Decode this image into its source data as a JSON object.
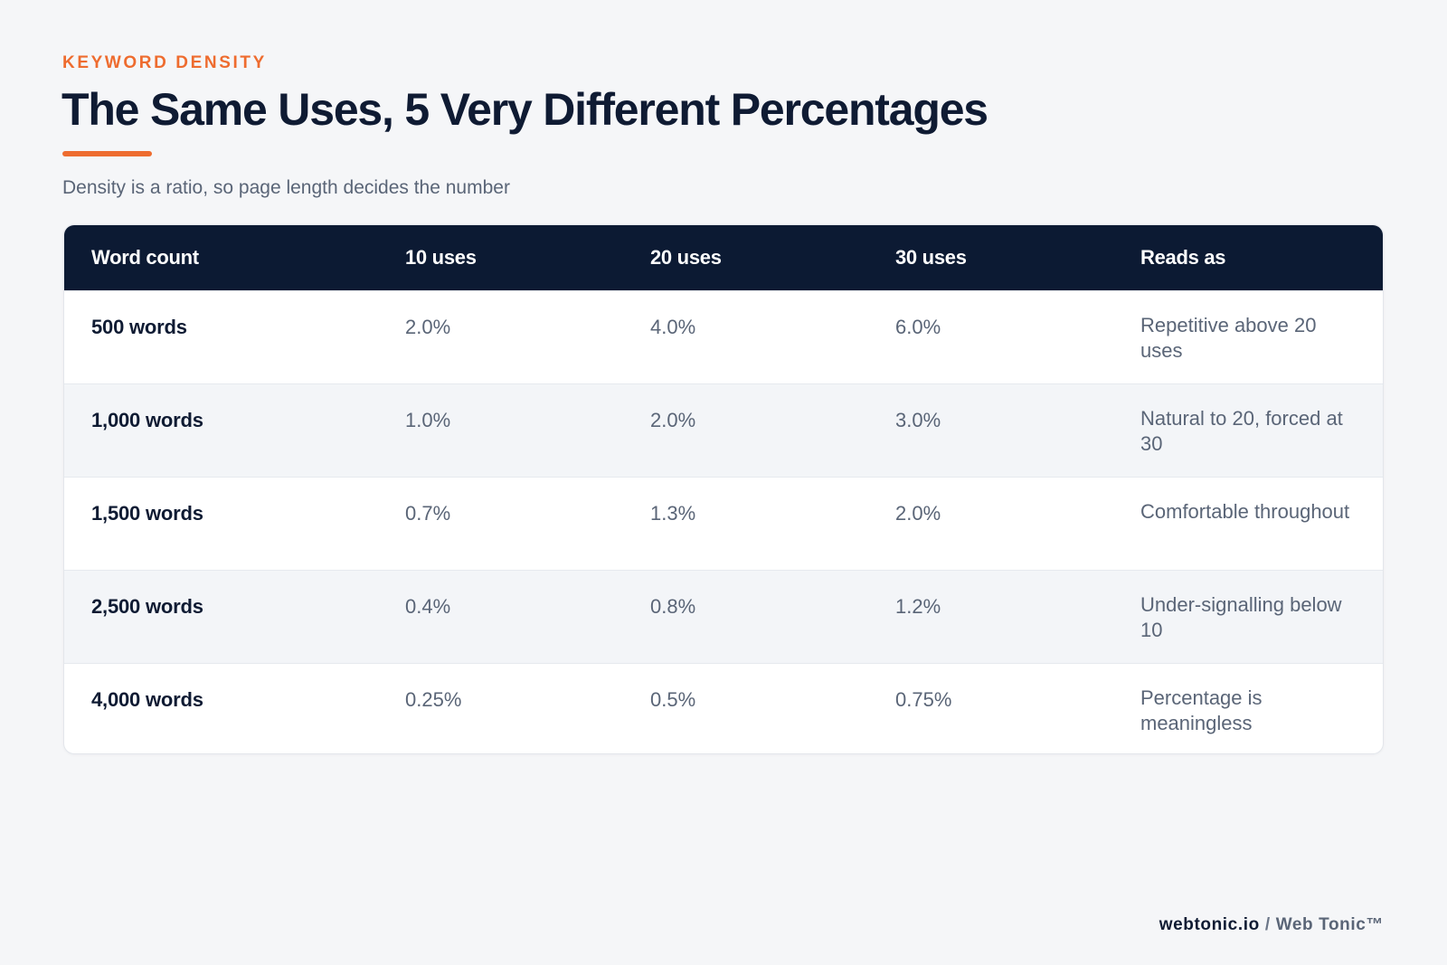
{
  "header": {
    "eyebrow": "KEYWORD DENSITY",
    "title": "The Same Uses, 5 Very Different Percentages",
    "subtitle": "Density is a ratio, so page length decides the number"
  },
  "table": {
    "columns": [
      "Word count",
      "10 uses",
      "20 uses",
      "30 uses",
      "Reads as"
    ],
    "rows": [
      {
        "label": "500 words",
        "u10": "2.0%",
        "u20": "4.0%",
        "u30": "6.0%",
        "note": "Repetitive above 20 uses"
      },
      {
        "label": "1,000 words",
        "u10": "1.0%",
        "u20": "2.0%",
        "u30": "3.0%",
        "note": "Natural to 20, forced at 30"
      },
      {
        "label": "1,500 words",
        "u10": "0.7%",
        "u20": "1.3%",
        "u30": "2.0%",
        "note": "Comfortable throughout"
      },
      {
        "label": "2,500 words",
        "u10": "0.4%",
        "u20": "0.8%",
        "u30": "1.2%",
        "note": "Under-signalling below 10"
      },
      {
        "label": "4,000 words",
        "u10": "0.25%",
        "u20": "0.5%",
        "u30": "0.75%",
        "note": "Percentage is meaningless"
      }
    ]
  },
  "footer": {
    "domain": "webtonic.io",
    "separator": "/",
    "brand": "Web Tonic™"
  },
  "colors": {
    "accent": "#ee6c2f",
    "header_bg": "#0c1a33",
    "title": "#0f1b33",
    "muted_text": "#5a6577",
    "page_bg": "#f5f6f8",
    "alt_row_bg": "#f3f5f8"
  }
}
